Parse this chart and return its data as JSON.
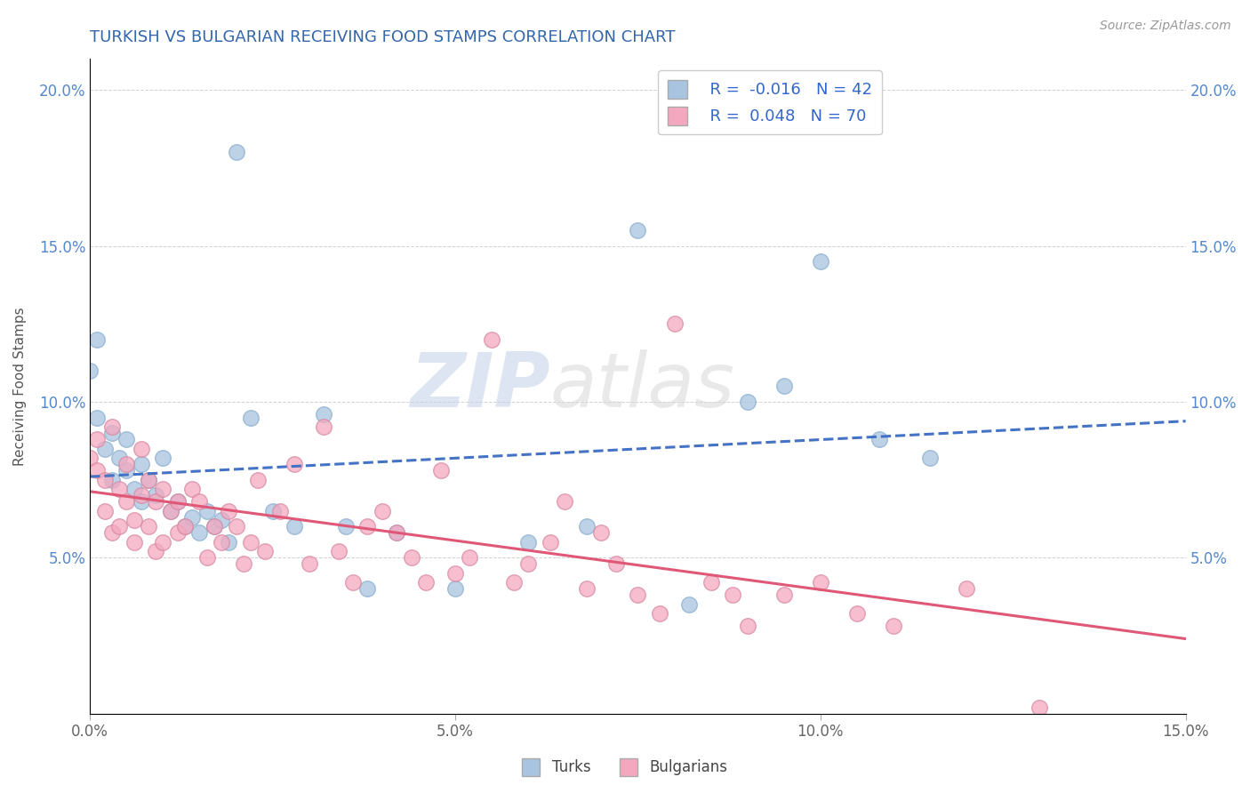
{
  "title": "TURKISH VS BULGARIAN RECEIVING FOOD STAMPS CORRELATION CHART",
  "source": "Source: ZipAtlas.com",
  "ylabel": "Receiving Food Stamps",
  "xlim": [
    0.0,
    0.15
  ],
  "ylim": [
    0.0,
    0.21
  ],
  "xticks": [
    0.0,
    0.05,
    0.1,
    0.15
  ],
  "xticklabels": [
    "0.0%",
    "5.0%",
    "10.0%",
    "15.0%"
  ],
  "yticks": [
    0.05,
    0.1,
    0.15,
    0.2
  ],
  "yticklabels": [
    "5.0%",
    "10.0%",
    "15.0%",
    "20.0%"
  ],
  "turks_R": -0.016,
  "turks_N": 42,
  "bulgarians_R": 0.048,
  "bulgarians_N": 70,
  "turks_color": "#a8c4e0",
  "bulgarians_color": "#f4a8c0",
  "turks_line_color": "#4472c4",
  "bulgarians_line_color": "#e05878",
  "watermark_zip": "ZIP",
  "watermark_atlas": "atlas",
  "turks_x": [
    0.0,
    0.001,
    0.001,
    0.002,
    0.003,
    0.003,
    0.004,
    0.005,
    0.005,
    0.006,
    0.007,
    0.007,
    0.008,
    0.009,
    0.01,
    0.011,
    0.012,
    0.013,
    0.014,
    0.015,
    0.016,
    0.017,
    0.018,
    0.019,
    0.02,
    0.022,
    0.025,
    0.028,
    0.032,
    0.035,
    0.038,
    0.042,
    0.05,
    0.06,
    0.068,
    0.075,
    0.082,
    0.09,
    0.095,
    0.1,
    0.108,
    0.115
  ],
  "turks_y": [
    0.11,
    0.095,
    0.12,
    0.085,
    0.09,
    0.075,
    0.082,
    0.078,
    0.088,
    0.072,
    0.08,
    0.068,
    0.075,
    0.07,
    0.082,
    0.065,
    0.068,
    0.06,
    0.063,
    0.058,
    0.065,
    0.06,
    0.062,
    0.055,
    0.18,
    0.095,
    0.065,
    0.06,
    0.096,
    0.06,
    0.04,
    0.058,
    0.04,
    0.055,
    0.06,
    0.155,
    0.035,
    0.1,
    0.105,
    0.145,
    0.088,
    0.082
  ],
  "bulgarians_x": [
    0.0,
    0.001,
    0.001,
    0.002,
    0.002,
    0.003,
    0.003,
    0.004,
    0.004,
    0.005,
    0.005,
    0.006,
    0.006,
    0.007,
    0.007,
    0.008,
    0.008,
    0.009,
    0.009,
    0.01,
    0.01,
    0.011,
    0.012,
    0.012,
    0.013,
    0.014,
    0.015,
    0.016,
    0.017,
    0.018,
    0.019,
    0.02,
    0.021,
    0.022,
    0.023,
    0.024,
    0.026,
    0.028,
    0.03,
    0.032,
    0.034,
    0.036,
    0.038,
    0.04,
    0.042,
    0.044,
    0.046,
    0.048,
    0.05,
    0.052,
    0.055,
    0.058,
    0.06,
    0.063,
    0.065,
    0.068,
    0.07,
    0.072,
    0.075,
    0.078,
    0.08,
    0.085,
    0.088,
    0.09,
    0.095,
    0.1,
    0.105,
    0.11,
    0.12,
    0.13
  ],
  "bulgarians_y": [
    0.082,
    0.078,
    0.088,
    0.065,
    0.075,
    0.058,
    0.092,
    0.072,
    0.06,
    0.068,
    0.08,
    0.062,
    0.055,
    0.07,
    0.085,
    0.06,
    0.075,
    0.068,
    0.052,
    0.055,
    0.072,
    0.065,
    0.058,
    0.068,
    0.06,
    0.072,
    0.068,
    0.05,
    0.06,
    0.055,
    0.065,
    0.06,
    0.048,
    0.055,
    0.075,
    0.052,
    0.065,
    0.08,
    0.048,
    0.092,
    0.052,
    0.042,
    0.06,
    0.065,
    0.058,
    0.05,
    0.042,
    0.078,
    0.045,
    0.05,
    0.12,
    0.042,
    0.048,
    0.055,
    0.068,
    0.04,
    0.058,
    0.048,
    0.038,
    0.032,
    0.125,
    0.042,
    0.038,
    0.028,
    0.038,
    0.042,
    0.032,
    0.028,
    0.04,
    0.002
  ]
}
